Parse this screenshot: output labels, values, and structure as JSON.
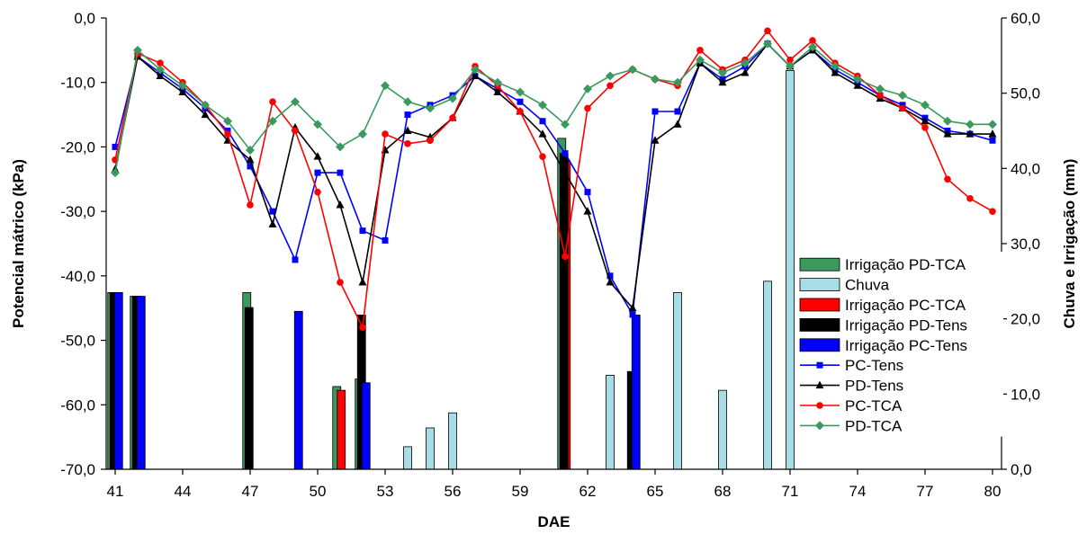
{
  "chart_data": {
    "type": "bar+line",
    "xlabel": "DAE",
    "ylabel_left": "Potencial mátrico (kPa)",
    "ylabel_right": "Chuva e Irrigação (mm)",
    "xlim": [
      40.6,
      80.4
    ],
    "ylim_left": [
      -70,
      0
    ],
    "ylim_right": [
      0,
      60
    ],
    "x_ticks": [
      41,
      44,
      47,
      50,
      53,
      56,
      59,
      62,
      65,
      68,
      71,
      74,
      77,
      80
    ],
    "x_tick_labels": [
      "41",
      "44",
      "47",
      "50",
      "53",
      "56",
      "59",
      "62",
      "65",
      "68",
      "71",
      "74",
      "77",
      "80"
    ],
    "y_left_ticks": [
      0,
      -10,
      -20,
      -30,
      -40,
      -50,
      -60,
      -70
    ],
    "y_left_tick_labels": [
      "0,0",
      "-10,0",
      "-20,0",
      "-30,0",
      "-40,0",
      "-50,0",
      "-60,0",
      "-70,0"
    ],
    "y_right_ticks": [
      0,
      10,
      20,
      30,
      40,
      50,
      60
    ],
    "y_right_tick_labels": [
      "0,0",
      "10,0",
      "20,0",
      "30,0",
      "40,0",
      "50,0",
      "60,0"
    ],
    "legend_position": "right-center",
    "bar_series": [
      {
        "name": "Irrigação PD-TCA",
        "color": "#3a9a5e",
        "offset": -0.15,
        "x": [
          41,
          42,
          47,
          51,
          52,
          61
        ],
        "values": [
          23.5,
          23,
          23.5,
          11,
          12,
          44
        ]
      },
      {
        "name": "Chuva",
        "color": "#a8dde8",
        "offset": 0,
        "x": [
          54,
          55,
          56,
          63,
          66,
          68,
          70,
          71
        ],
        "values": [
          3,
          5.5,
          7.5,
          12.5,
          23.5,
          10.5,
          25,
          53
        ]
      },
      {
        "name": "Irrigação PC-TCA",
        "color": "#ff0000",
        "offset": 0.05,
        "x": [
          51,
          61
        ],
        "values": [
          10.5,
          41
        ]
      },
      {
        "name": "Irrigação PD-Tens",
        "color": "#000000",
        "offset": -0.05,
        "x": [
          41,
          42,
          47,
          52,
          61,
          64
        ],
        "values": [
          23.5,
          23,
          21.5,
          20.5,
          42,
          13
        ]
      },
      {
        "name": "Irrigação PC-Tens",
        "color": "#0000ff",
        "offset": 0.15,
        "x": [
          41,
          42,
          49,
          52,
          64
        ],
        "values": [
          23.5,
          23,
          21,
          11.5,
          20.5
        ]
      }
    ],
    "line_series": [
      {
        "name": "PC-Tens",
        "color": "#0000ff",
        "marker": "square",
        "x": [
          41,
          42,
          43,
          44,
          45,
          46,
          47,
          48,
          49,
          50,
          51,
          52,
          53,
          54,
          55,
          56,
          57,
          58,
          59,
          60,
          61,
          62,
          63,
          64,
          65,
          66,
          67,
          68,
          69,
          70,
          71,
          72,
          73,
          74,
          75,
          76,
          77,
          78,
          79,
          80
        ],
        "values": [
          -20,
          -6,
          -8.5,
          -11,
          -14,
          -17.5,
          -23,
          -30,
          -37.5,
          -24,
          -24,
          -33,
          -34.5,
          -15,
          -13.5,
          -12,
          -9,
          -11,
          -13,
          -16,
          -21,
          -27,
          -40,
          -46,
          -14.5,
          -14.5,
          -7,
          -9.5,
          -7.5,
          -4,
          -7.5,
          -5,
          -8,
          -10,
          -12,
          -13.5,
          -15.5,
          -17.5,
          -18,
          -19
        ]
      },
      {
        "name": "PD-Tens",
        "color": "#000000",
        "marker": "triangle",
        "x": [
          41,
          42,
          43,
          44,
          45,
          46,
          47,
          48,
          49,
          50,
          51,
          52,
          53,
          54,
          55,
          56,
          57,
          58,
          59,
          60,
          61,
          62,
          63,
          64,
          65,
          66,
          67,
          68,
          69,
          70,
          71,
          72,
          73,
          74,
          75,
          76,
          77,
          78,
          79,
          80
        ],
        "values": [
          -23.5,
          -6,
          -9,
          -11.5,
          -15,
          -19,
          -22,
          -32,
          -17,
          -21.5,
          -29,
          -41,
          -20.5,
          -17.5,
          -18.5,
          -15.5,
          -9,
          -11.5,
          -14.5,
          -18,
          -24,
          -30,
          -41,
          -45,
          -19,
          -16.5,
          -7,
          -10,
          -8.5,
          -4,
          -7.5,
          -5,
          -8.5,
          -10.5,
          -12.5,
          -14,
          -16,
          -18,
          -18,
          -18
        ]
      },
      {
        "name": "PC-TCA",
        "color": "#ff0000",
        "marker": "circle",
        "x": [
          41,
          42,
          43,
          44,
          45,
          46,
          47,
          48,
          49,
          50,
          51,
          52,
          53,
          54,
          55,
          56,
          57,
          58,
          59,
          60,
          61,
          62,
          63,
          64,
          65,
          66,
          67,
          68,
          69,
          70,
          71,
          72,
          73,
          74,
          75,
          76,
          77,
          78,
          79,
          80
        ],
        "values": [
          -22,
          -5.5,
          -7,
          -10,
          -13.5,
          -18,
          -29,
          -13,
          -17.5,
          -27,
          -41,
          -48,
          -18,
          -19.5,
          -19,
          -15.5,
          -7.5,
          -10.5,
          -14.5,
          -21.5,
          -37,
          -14,
          -10.5,
          -8,
          -9.5,
          -10.5,
          -5,
          -8,
          -6.5,
          -2,
          -6.5,
          -3.5,
          -7,
          -9,
          -12,
          -14,
          -17,
          -25,
          -28,
          -30
        ]
      },
      {
        "name": "PD-TCA",
        "color": "#3a9a5e",
        "marker": "diamond",
        "x": [
          41,
          42,
          43,
          44,
          45,
          46,
          47,
          48,
          49,
          50,
          51,
          52,
          53,
          54,
          55,
          56,
          57,
          58,
          59,
          60,
          61,
          62,
          63,
          64,
          65,
          66,
          67,
          68,
          69,
          70,
          71,
          72,
          73,
          74,
          75,
          76,
          77,
          78,
          79,
          80
        ],
        "values": [
          -24,
          -5,
          -8,
          -10.5,
          -13.5,
          -16,
          -20.5,
          -16,
          -13,
          -16.5,
          -20,
          -18,
          -10.5,
          -13,
          -14,
          -12.5,
          -8,
          -10,
          -11.5,
          -13.5,
          -16.5,
          -11,
          -9,
          -8,
          -9.5,
          -10,
          -6.5,
          -8.5,
          -7,
          -4,
          -7.5,
          -4.5,
          -7.5,
          -9.5,
          -11,
          -12,
          -13.5,
          -16,
          -16.5,
          -16.5
        ]
      }
    ]
  }
}
